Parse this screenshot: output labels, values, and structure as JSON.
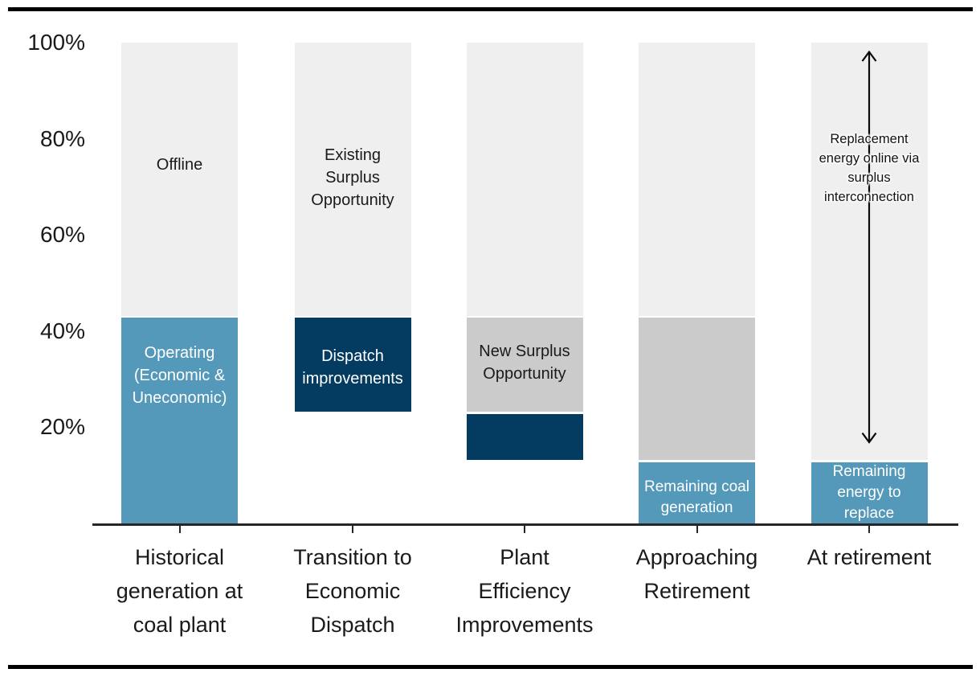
{
  "chart_data": {
    "type": "bar",
    "stacked": true,
    "title": "",
    "xlabel": "",
    "ylabel": "",
    "ylim": [
      0,
      100
    ],
    "grid": false,
    "legend": "none",
    "y_ticks": [
      {
        "value": 100,
        "label": "100%"
      },
      {
        "value": 80,
        "label": "80%"
      },
      {
        "value": 60,
        "label": "60%"
      },
      {
        "value": 40,
        "label": "40%"
      },
      {
        "value": 20,
        "label": "20%"
      }
    ],
    "categories": [
      "Historical\ngeneration at\ncoal plant",
      "Transition to\nEconomic\nDispatch",
      "Plant\nEfficiency\nImprovements",
      "Approaching\nRetirement",
      "At retirement"
    ],
    "columns": [
      {
        "category": "Historical\ngeneration at\ncoal plant",
        "segments": [
          {
            "name": "operating-economic-uneconomic",
            "from": 0,
            "to": 43,
            "color": "bar_blue",
            "label": "Operating\n(Economic &\nUneconomic)",
            "label_color": "light",
            "label_valign": "top"
          },
          {
            "name": "offline",
            "from": 43,
            "to": 100,
            "color": "bar_light_gray",
            "label": "Offline",
            "label_color": "dark",
            "label_dy": -18
          }
        ]
      },
      {
        "category": "Transition to\nEconomic\nDispatch",
        "segments": [
          {
            "name": "dispatch-improvements",
            "from": 23,
            "to": 43,
            "color": "bar_navy",
            "label": "Dispatch\nimprovements",
            "label_color": "light",
            "label_dy": 3
          },
          {
            "name": "existing-surplus-opportunity",
            "from": 43,
            "to": 100,
            "color": "bar_light_gray",
            "label": "Existing\nSurplus\nOpportunity",
            "label_color": "dark",
            "label_dy": -2
          }
        ]
      },
      {
        "category": "Plant\nEfficiency\nImprovements",
        "segments": [
          {
            "name": "efficiency-improvement",
            "from": 13,
            "to": 23,
            "color": "bar_navy",
            "label": ""
          },
          {
            "name": "new-surplus-opportunity",
            "from": 23,
            "to": 43,
            "color": "bar_gray",
            "label": "New Surplus\nOpportunity",
            "label_color": "dark",
            "label_dy": -3
          },
          {
            "name": "offline-upper",
            "from": 43,
            "to": 100,
            "color": "bar_light_gray",
            "label": ""
          }
        ]
      },
      {
        "category": "Approaching\nRetirement",
        "segments": [
          {
            "name": "remaining-coal-generation",
            "from": 0,
            "to": 13,
            "color": "bar_blue",
            "label": "Remaining coal\ngeneration",
            "label_color": "light",
            "label_size": "small",
            "label_dy": 6
          },
          {
            "name": "surplus-middle",
            "from": 13,
            "to": 43,
            "color": "bar_gray",
            "label": ""
          },
          {
            "name": "offline-upper",
            "from": 43,
            "to": 100,
            "color": "bar_light_gray",
            "label": ""
          }
        ]
      },
      {
        "category": "At retirement",
        "segments": [
          {
            "name": "remaining-energy-to-replace",
            "from": 0,
            "to": 13,
            "color": "bar_blue",
            "label": "Remaining\nenergy to\nreplace",
            "label_color": "light",
            "label_size": "small"
          },
          {
            "name": "replacement-span",
            "from": 13,
            "to": 100,
            "color": "bar_light_gray",
            "label": ""
          }
        ]
      }
    ],
    "annotation": {
      "column_index": 4,
      "text": "Replacement\nenergy online via\nsurplus\ninterconnection",
      "arrow": "double-headed-vertical",
      "arrow_span_pct": [
        16.6,
        98.3
      ],
      "text_center_pct": 73.9
    },
    "colors": {
      "bar_blue": "#5499b9",
      "bar_navy": "#043b61",
      "bar_gray": "#cbcbcb",
      "bar_light_gray": "#efefef",
      "axis": "#262626",
      "text_dark": "#1a1a1a",
      "text_light": "#ffffff",
      "rule": "#000000"
    }
  }
}
